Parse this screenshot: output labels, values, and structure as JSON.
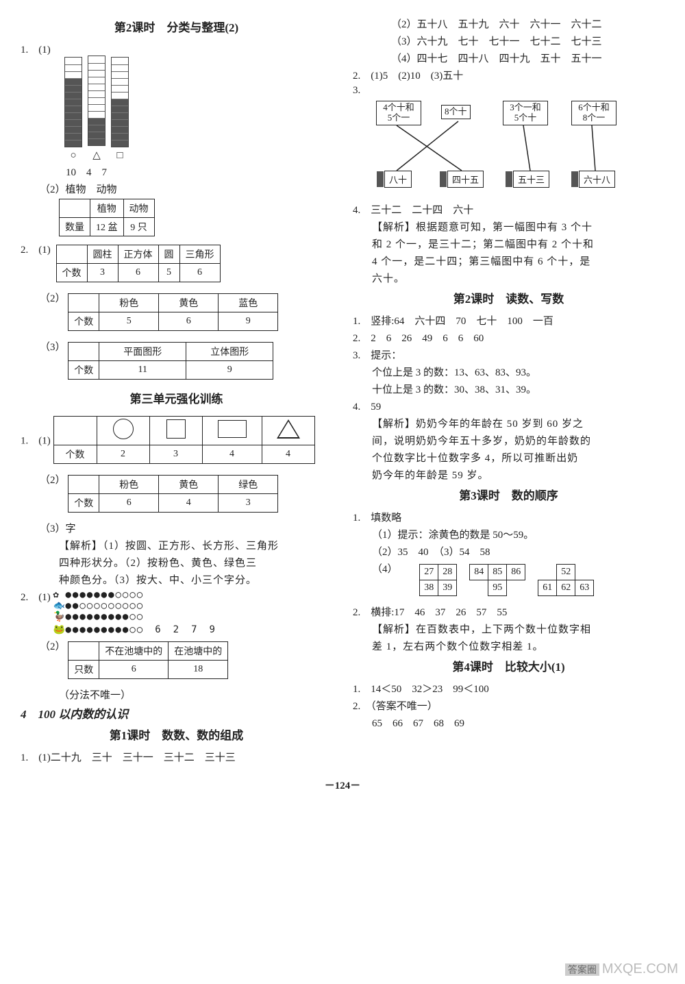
{
  "page_number": "－124－",
  "watermark": {
    "badge": "答案圈",
    "url": "MXQE.COM"
  },
  "left": {
    "title_l2": "第2课时　分类与整理(2)",
    "bars": {
      "height_units": 12,
      "items": [
        {
          "label": "○",
          "filled": 10
        },
        {
          "label": "△",
          "filled": 4
        },
        {
          "label": "□",
          "filled": 7
        }
      ],
      "counts": "10　4　7"
    },
    "q1b": "（2）植物　动物",
    "t_plant": {
      "headers": [
        "",
        "植物",
        "动物"
      ],
      "row": [
        "数量",
        "12 盆",
        "9 只"
      ]
    },
    "q2a": {
      "headers": [
        "",
        "圆柱",
        "正方体",
        "圆",
        "三角形"
      ],
      "row": [
        "个数",
        "3",
        "6",
        "5",
        "6"
      ]
    },
    "q2b": {
      "headers": [
        "",
        "粉色",
        "黄色",
        "蓝色"
      ],
      "row": [
        "个数",
        "5",
        "6",
        "9"
      ]
    },
    "q2c": {
      "headers": [
        "",
        "平面图形",
        "立体图形"
      ],
      "row": [
        "个数",
        "11",
        "9"
      ]
    },
    "title_u3": "第三单元强化训练",
    "u3_q1a": {
      "row": [
        "个数",
        "2",
        "3",
        "4",
        "4"
      ]
    },
    "u3_q1b": {
      "headers": [
        "",
        "粉色",
        "黄色",
        "绿色"
      ],
      "row": [
        "个数",
        "6",
        "4",
        "3"
      ]
    },
    "u3_q1c": "（3）字",
    "u3_exp1": "【解析】（1）按圆、正方形、长方形、三角形",
    "u3_exp2": "四种形状分。（2）按粉色、黄色、绿色三",
    "u3_exp3": "种颜色分。（3）按大、中、小三个字分。",
    "u3_q2_vals": "6　2　7　9",
    "u3_q2b": {
      "headers": [
        "",
        "不在池塘中的",
        "在池塘中的"
      ],
      "row": [
        "只数",
        "6",
        "18"
      ]
    },
    "u3_note": "（分法不唯一）",
    "title_ch4": "4　100 以内数的认识",
    "title_l41": "第1课时　数数、数的组成",
    "q41": "1.　(1)二十九　三十　三十一　三十二　三十三"
  },
  "right": {
    "r1a": "（2）五十八　五十九　六十　六十一　六十二",
    "r1b": "（3）六十九　七十　七十一　七十二　七十三",
    "r1c": "（4）四十七　四十八　四十九　五十　五十一",
    "r2": "2.　(1)5　(2)10　(3)五十",
    "match": {
      "top": [
        {
          "t1": "4个十和",
          "t2": "5个一"
        },
        {
          "t1": "8个十",
          "t2": ""
        },
        {
          "t1": "3个一和",
          "t2": "5个十"
        },
        {
          "t1": "6个十和",
          "t2": "8个一"
        }
      ],
      "bottom": [
        "八十",
        "四十五",
        "五十三",
        "六十八"
      ]
    },
    "r4a": "4.　三十二　二十四　六十",
    "r4e1": "【解析】根据题意可知，第一幅图中有 3 个十",
    "r4e2": "和 2 个一，是三十二；第二幅图中有 2 个十和",
    "r4e3": "4 个一，是二十四；第三幅图中有 6 个十，是",
    "r4e4": "六十。",
    "title_l42": "第2课时　读数、写数",
    "l42_1": "1.　竖排:64　六十四　70　七十　100　一百",
    "l42_2": "2.　2　6　26　49　6　6　60",
    "l42_3h": "3.　提示：",
    "l42_3a": "个位上是 3 的数：13、63、83、93。",
    "l42_3b": "十位上是 3 的数：30、38、31、39。",
    "l42_4": "4.　59",
    "l42_4e1": "【解析】奶奶今年的年龄在 50 岁到 60 岁之",
    "l42_4e2": "间，说明奶奶今年五十多岁，奶奶的年龄数的",
    "l42_4e3": "个位数字比十位数字多 4，所以可推断出奶",
    "l42_4e4": "奶今年的年龄是 59 岁。",
    "title_l43": "第3课时　数的顺序",
    "l43_1h": "1.　填数略",
    "l43_1a": "（1）提示：涂黄色的数是 50～59。",
    "l43_1b": "（2）35　40　（3）54　58",
    "l43_1c_label": "（4）",
    "grid": {
      "g1": [
        [
          "27",
          "28"
        ],
        [
          "38",
          "39"
        ]
      ],
      "g2": [
        [
          "84",
          "85",
          "86"
        ],
        [
          "",
          "95",
          ""
        ]
      ],
      "g3": [
        [
          "",
          "52",
          ""
        ],
        [
          "61",
          "62",
          "63"
        ]
      ]
    },
    "l43_2": "2.　横排:17　46　37　26　57　55",
    "l43_2e1": "【解析】在百数表中，上下两个数十位数字相",
    "l43_2e2": "差 1，左右两个数个位数字相差 1。",
    "title_l44": "第4课时　比较大小(1)",
    "l44_1": "1.　14＜50　32＞23　99＜100",
    "l44_2": "2.　（答案不唯一）",
    "l44_2a": "65　66　67　68　69"
  }
}
